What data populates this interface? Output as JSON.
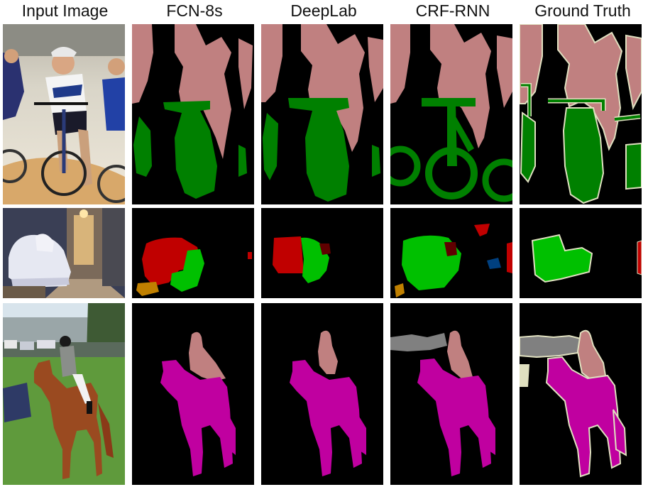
{
  "columns": [
    {
      "label": "Input Image"
    },
    {
      "label": "FCN-8s"
    },
    {
      "label": "DeepLab"
    },
    {
      "label": "CRF-RNN"
    },
    {
      "label": "Ground Truth"
    }
  ],
  "rows": [
    {
      "scene": "cyclists"
    },
    {
      "scene": "living-room-sofa"
    },
    {
      "scene": "horse-rider"
    }
  ],
  "colors": {
    "background": "#000000",
    "person": "#C08080",
    "bicycle": "#008000",
    "sofa": "#00C000",
    "chair": "#C00000",
    "dog": "#C08000",
    "horse": "#C000A0",
    "car": "#808080",
    "boundary": "#E0E0C0",
    "tvmonitor": "#004080"
  }
}
